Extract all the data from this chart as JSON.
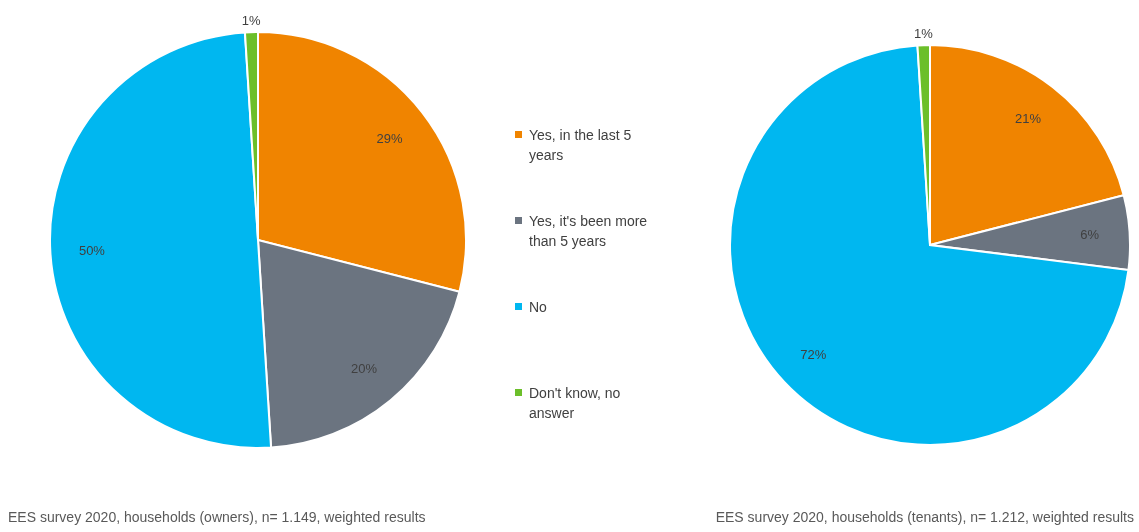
{
  "chart_data": [
    {
      "type": "pie",
      "categories": [
        "Yes, in the last 5 years",
        "Yes, it's been more than 5 years",
        "No",
        "Don't know, no answer"
      ],
      "values": [
        29,
        20,
        50,
        1
      ],
      "colors": [
        "#f08400",
        "#6b7480",
        "#00b7f0",
        "#6cbf2a"
      ],
      "value_labels": [
        "29%",
        "20%",
        "50%",
        "1%"
      ],
      "legend": "right",
      "annotations": [
        "EES survey 2020, households (owners), n= 1.149, weighted results"
      ]
    },
    {
      "type": "pie",
      "categories": [
        null,
        null,
        null,
        null
      ],
      "values": [
        21,
        6,
        72,
        1
      ],
      "colors": [
        "#f08400",
        "#6b7480",
        "#00b7f0",
        "#6cbf2a"
      ],
      "value_labels": [
        "21%",
        "6%",
        "72%",
        "1%"
      ],
      "annotations": [
        "EES survey 2020, households (tenants), n= 1.212, weighted results"
      ]
    }
  ]
}
